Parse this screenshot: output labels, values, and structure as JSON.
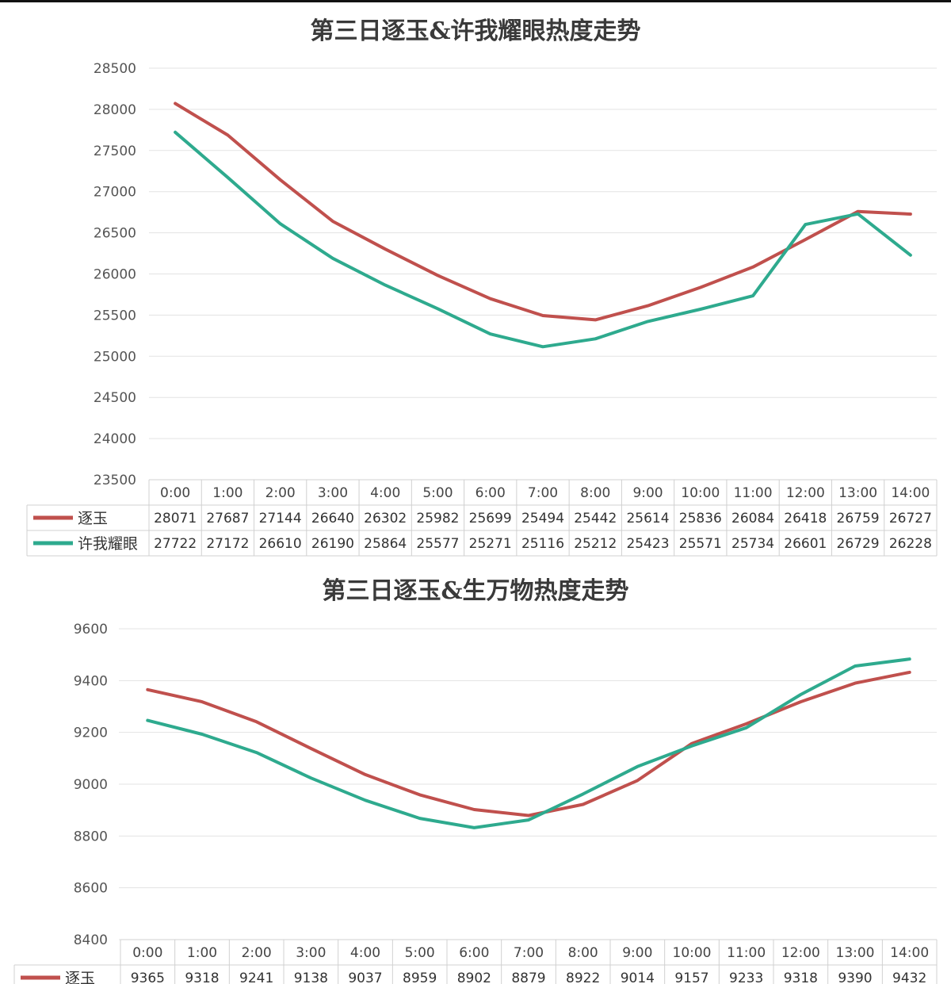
{
  "chart_data": [
    {
      "type": "line",
      "title": "第三日逐玉&许我耀眼热度走势",
      "categories": [
        "0:00",
        "1:00",
        "2:00",
        "3:00",
        "4:00",
        "5:00",
        "6:00",
        "7:00",
        "8:00",
        "9:00",
        "10:00",
        "11:00",
        "12:00",
        "13:00",
        "14:00"
      ],
      "series": [
        {
          "name": "逐玉",
          "color": "#c0504d",
          "values": [
            28071,
            27687,
            27144,
            26640,
            26302,
            25982,
            25699,
            25494,
            25442,
            25614,
            25836,
            26084,
            26418,
            26759,
            26727
          ]
        },
        {
          "name": "许我耀眼",
          "color": "#2eaa8e",
          "values": [
            27722,
            27172,
            26610,
            26190,
            25864,
            25577,
            25271,
            25116,
            25212,
            25423,
            25571,
            25734,
            26601,
            26729,
            26228
          ]
        }
      ],
      "ylim": [
        23500,
        28500
      ],
      "yticks": [
        23500,
        24000,
        24500,
        25000,
        25500,
        26000,
        26500,
        27000,
        27500,
        28000,
        28500
      ],
      "grid": true,
      "legend": "data-table"
    },
    {
      "type": "line",
      "title": "第三日逐玉&生万物热度走势",
      "categories": [
        "0:00",
        "1:00",
        "2:00",
        "3:00",
        "4:00",
        "5:00",
        "6:00",
        "7:00",
        "8:00",
        "9:00",
        "10:00",
        "11:00",
        "12:00",
        "13:00",
        "14:00"
      ],
      "series": [
        {
          "name": "逐玉",
          "color": "#c0504d",
          "values": [
            9365,
            9318,
            9241,
            9138,
            9037,
            8959,
            8902,
            8879,
            8922,
            9014,
            9157,
            9233,
            9318,
            9390,
            9432
          ]
        },
        {
          "color": "#2eaa8e",
          "values": [
            9246,
            9193,
            9122,
            9024,
            8938,
            8868,
            8832,
            8862,
            8962,
            9068,
            9148,
            9218,
            9346,
            9456,
            9483
          ]
        }
      ],
      "ylim": [
        8400,
        9600
      ],
      "yticks": [
        8400,
        8600,
        8800,
        9000,
        9200,
        9400,
        9600
      ],
      "grid": true,
      "legend": "data-table"
    }
  ]
}
